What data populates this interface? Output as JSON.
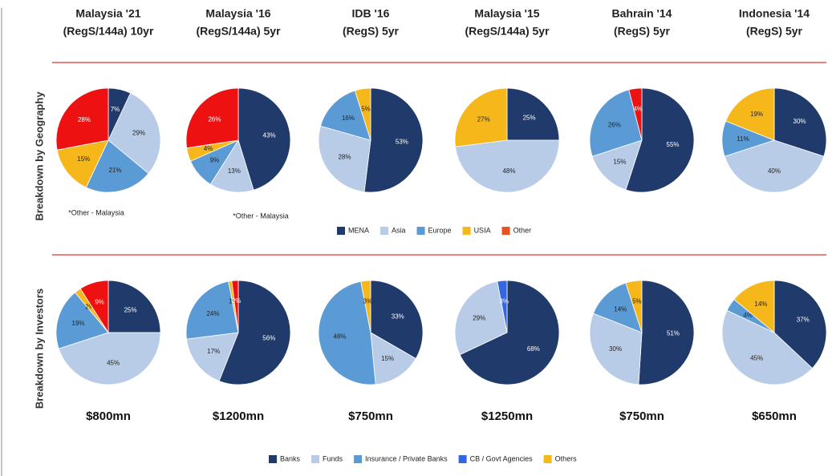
{
  "columns": [
    {
      "title": [
        "Malaysia '21",
        "(RegS/144a) 10yr"
      ],
      "amount": "$800mn"
    },
    {
      "title": [
        "Malaysia '16",
        "(RegS/144a) 5yr"
      ],
      "amount": "$1200mn"
    },
    {
      "title": [
        "IDB '16",
        "(RegS) 5yr"
      ],
      "amount": "$750mn"
    },
    {
      "title": [
        "Malaysia '15",
        "(RegS/144a) 5yr"
      ],
      "amount": "$1250mn"
    },
    {
      "title": [
        "Bahrain '14",
        "(RegS) 5yr"
      ],
      "amount": "$750mn"
    },
    {
      "title": [
        "Indonesia '14",
        "(RegS) 5yr"
      ],
      "amount": "$650mn"
    }
  ],
  "row_labels": [
    "Breakdown by Geography",
    "Breakdown by Investors"
  ],
  "notes": [
    "*Other - Malaysia",
    "*Other - Malaysia"
  ],
  "legends": [
    {
      "items": [
        {
          "label": "MENA",
          "color": "#1f3a6b"
        },
        {
          "label": "Asia",
          "color": "#b8cce8"
        },
        {
          "label": "Europe",
          "color": "#5b9bd5"
        },
        {
          "label": "USIA",
          "color": "#f6b71a"
        },
        {
          "label": "Other",
          "color": "#e8541c"
        }
      ]
    },
    {
      "items": [
        {
          "label": "Banks",
          "color": "#1f3a6b"
        },
        {
          "label": "Funds",
          "color": "#b8cce8"
        },
        {
          "label": "Insurance / Private Banks",
          "color": "#5b9bd5"
        },
        {
          "label": "CB / Govt Agencies",
          "color": "#3366e0"
        },
        {
          "label": "Others",
          "color": "#f6b71a"
        }
      ]
    }
  ],
  "chart_data": [
    {
      "type": "pie",
      "values": [
        7,
        29,
        21,
        15,
        28
      ],
      "value_labels": [
        "7%",
        "29%",
        "21%",
        "15%",
        "28%"
      ],
      "colors": [
        "#1f3a6b",
        "#b8cce8",
        "#5b9bd5",
        "#f6b71a",
        "#ee1111"
      ]
    },
    {
      "type": "pie",
      "values": [
        43,
        13,
        9,
        4,
        26
      ],
      "value_labels": [
        "43%",
        "13%",
        "9%",
        "4%",
        "26%"
      ],
      "colors": [
        "#1f3a6b",
        "#b8cce8",
        "#5b9bd5",
        "#f6b71a",
        "#ee1111"
      ]
    },
    {
      "type": "pie",
      "values": [
        53,
        28,
        16,
        5
      ],
      "value_labels": [
        "53%",
        "28%",
        "16%",
        "5%"
      ],
      "colors": [
        "#1f3a6b",
        "#b8cce8",
        "#5b9bd5",
        "#f6b71a"
      ]
    },
    {
      "type": "pie",
      "values": [
        25,
        48,
        27
      ],
      "value_labels": [
        "25%",
        "48%",
        "27%"
      ],
      "colors": [
        "#1f3a6b",
        "#b8cce8",
        "#f6b71a"
      ]
    },
    {
      "type": "pie",
      "values": [
        55,
        15,
        26,
        4
      ],
      "value_labels": [
        "55%",
        "15%",
        "26%",
        "4%"
      ],
      "colors": [
        "#1f3a6b",
        "#b8cce8",
        "#5b9bd5",
        "#ee1111"
      ]
    },
    {
      "type": "pie",
      "values": [
        30,
        40,
        11,
        19
      ],
      "value_labels": [
        "30%",
        "40%",
        "11%",
        "19%"
      ],
      "colors": [
        "#1f3a6b",
        "#b8cce8",
        "#5b9bd5",
        "#f6b71a"
      ]
    },
    {
      "type": "pie",
      "values": [
        25,
        45,
        19,
        2,
        9
      ],
      "value_labels": [
        "25%",
        "45%",
        "19%",
        "2%",
        "9%"
      ],
      "colors": [
        "#1f3a6b",
        "#b8cce8",
        "#5b9bd5",
        "#f6b71a",
        "#ee1111"
      ]
    },
    {
      "type": "pie",
      "values": [
        56,
        17,
        24,
        1,
        2
      ],
      "value_labels": [
        "56%",
        "17%",
        "24%",
        "1%",
        "2%"
      ],
      "colors": [
        "#1f3a6b",
        "#b8cce8",
        "#5b9bd5",
        "#f6b71a",
        "#ee1111"
      ]
    },
    {
      "type": "pie",
      "values": [
        33,
        15,
        48,
        3
      ],
      "value_labels": [
        "33%",
        "15%",
        "48%",
        "3%"
      ],
      "colors": [
        "#1f3a6b",
        "#b8cce8",
        "#5b9bd5",
        "#f6b71a"
      ]
    },
    {
      "type": "pie",
      "values": [
        68,
        29,
        3
      ],
      "value_labels": [
        "68%",
        "29%",
        "3%"
      ],
      "colors": [
        "#1f3a6b",
        "#b8cce8",
        "#3366e0"
      ]
    },
    {
      "type": "pie",
      "values": [
        51,
        30,
        14,
        5
      ],
      "value_labels": [
        "51%",
        "30%",
        "14%",
        "5%"
      ],
      "colors": [
        "#1f3a6b",
        "#b8cce8",
        "#5b9bd5",
        "#f6b71a"
      ]
    },
    {
      "type": "pie",
      "values": [
        37,
        45,
        4,
        14
      ],
      "value_labels": [
        "37%",
        "45%",
        "4%",
        "14%"
      ],
      "colors": [
        "#1f3a6b",
        "#b8cce8",
        "#5b9bd5",
        "#f6b71a"
      ]
    }
  ]
}
